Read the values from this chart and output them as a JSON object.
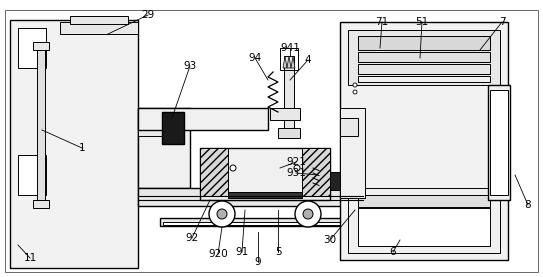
{
  "bg_color": "#ffffff",
  "lc": "#000000",
  "figsize": [
    5.43,
    2.77
  ],
  "dpi": 100,
  "labels": [
    [
      "29",
      148,
      15
    ],
    [
      "93",
      190,
      68
    ],
    [
      "94",
      255,
      58
    ],
    [
      "941",
      290,
      48
    ],
    [
      "4",
      308,
      60
    ],
    [
      "71",
      380,
      22
    ],
    [
      "51",
      420,
      22
    ],
    [
      "7",
      500,
      22
    ],
    [
      "1",
      82,
      148
    ],
    [
      "11",
      30,
      258
    ],
    [
      "8",
      528,
      205
    ],
    [
      "92",
      193,
      238
    ],
    [
      "920",
      218,
      255
    ],
    [
      "91",
      242,
      252
    ],
    [
      "9",
      258,
      262
    ],
    [
      "5",
      278,
      252
    ],
    [
      "921",
      296,
      162
    ],
    [
      "931",
      296,
      173
    ],
    [
      "30",
      330,
      240
    ],
    [
      "6",
      393,
      252
    ]
  ]
}
